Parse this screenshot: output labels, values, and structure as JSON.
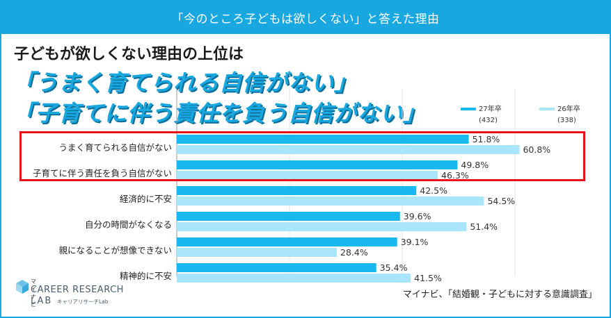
{
  "banner_title": "「今のところ子どもは欲しくない」と答えた理由",
  "heading": "子どもが欲しくない理由の上位は",
  "headline1": "「うまく育てられる自信がない」",
  "headline2": "「子育てに伴う責任を負う自信がない」",
  "source": "マイナビ、「結婚観・子どもに対する意識調査」",
  "logo": {
    "brand": "マイナビ",
    "line1": "CAREER RESEARCH",
    "line2": "LAB",
    "line3": "キャリアリサーチLab"
  },
  "colors": {
    "accent": "#19a7e0",
    "series1": "#19b8ee",
    "series2": "#a9e6fb",
    "highlight": "#e8101c"
  },
  "chart_data": {
    "type": "bar",
    "orientation": "horizontal",
    "categories": [
      "うまく育てられる自信がない",
      "子育てに伴う責任を負う自信がない",
      "経済的に不安",
      "自分の時間がなくなる",
      "親になることが想像できない",
      "精神的に不安"
    ],
    "series": [
      {
        "name": "27年卒",
        "n": "(432)",
        "values": [
          51.8,
          49.8,
          42.5,
          39.6,
          39.1,
          35.4
        ],
        "labels": [
          "51.8%",
          "49.8%",
          "42.5%",
          "39.6%",
          "39.1%",
          "35.4%"
        ]
      },
      {
        "name": "26年卒",
        "n": "(338)",
        "values": [
          60.8,
          46.3,
          54.5,
          51.4,
          28.4,
          41.5
        ],
        "labels": [
          "60.8%",
          "46.3%",
          "54.5%",
          "51.4%",
          "28.4%",
          "41.5%"
        ]
      }
    ],
    "xlim": [
      0,
      80
    ],
    "highlighted_categories": [
      "うまく育てられる自信がない",
      "子育てに伴う責任を負う自信がない"
    ]
  }
}
